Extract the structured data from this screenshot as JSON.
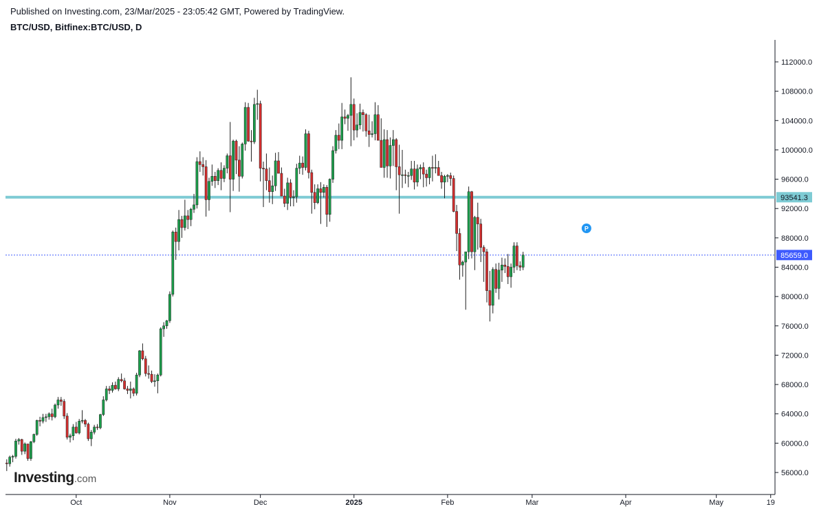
{
  "header": {
    "published": "Published on Investing.com, 23/Mar/2025 - 23:05:42 GMT, Powered by TradingView.",
    "symbol": "BTC/USD, Bitfinex:BTC/USD, D"
  },
  "logo": {
    "brand": "Investing",
    "suffix": ".com"
  },
  "colors": {
    "up": "#26a69a",
    "up_candle": "#1b9e4b",
    "down": "#d32f2f",
    "wick": "#1e1e1e",
    "support_line": "#7ecbd4",
    "last_price": "#3d5afe"
  },
  "chart_data": {
    "type": "candlestick",
    "title": "BTC/USD, Bitfinex:BTC/USD, D",
    "x_start": "2024-09-08",
    "y_axis": {
      "min": 53000,
      "max": 115000,
      "ticks": [
        "56000.0",
        "60000.0",
        "64000.0",
        "68000.0",
        "72000.0",
        "76000.0",
        "80000.0",
        "84000.0",
        "88000.0",
        "92000.0",
        "96000.0",
        "100000.0",
        "104000.0",
        "108000.0",
        "112000.0"
      ]
    },
    "x_axis": {
      "labels": [
        {
          "label": "Oct",
          "date": "2024-10-01"
        },
        {
          "label": "Nov",
          "date": "2024-11-01"
        },
        {
          "label": "Dec",
          "date": "2024-12-01"
        },
        {
          "label": "2025",
          "date": "2025-01-01",
          "bold": true
        },
        {
          "label": "Feb",
          "date": "2025-02-01"
        },
        {
          "label": "Mar",
          "date": "2025-03-01"
        },
        {
          "label": "Apr",
          "date": "2025-04-01"
        },
        {
          "label": "May",
          "date": "2025-05-01"
        },
        {
          "label": "19",
          "date": "2025-05-19"
        }
      ]
    },
    "horizontal_line": {
      "value": 93541.3,
      "label": "93541.3"
    },
    "last_price": {
      "value": 85659.0,
      "label": "85659.0"
    },
    "marker": {
      "label": "P",
      "date": "2025-03-19",
      "value": 89300
    },
    "ohlc": [
      [
        57300,
        57800,
        56200,
        57200
      ],
      [
        57200,
        58300,
        56800,
        58100
      ],
      [
        58100,
        58400,
        57400,
        58200
      ],
      [
        58200,
        60600,
        57900,
        60300
      ],
      [
        60300,
        60700,
        59800,
        60500
      ],
      [
        60500,
        60600,
        58400,
        58900
      ],
      [
        58900,
        60100,
        58500,
        59900
      ],
      [
        59900,
        59700,
        57600,
        57900
      ],
      [
        57900,
        60300,
        57600,
        60200
      ],
      [
        60200,
        61300,
        60000,
        61200
      ],
      [
        61200,
        63200,
        61000,
        63100
      ],
      [
        63100,
        63600,
        62300,
        63000
      ],
      [
        63000,
        64000,
        62700,
        63500
      ],
      [
        63500,
        64000,
        62900,
        63600
      ],
      [
        63600,
        64200,
        63200,
        64000
      ],
      [
        64000,
        64700,
        63100,
        63600
      ],
      [
        63600,
        65400,
        63400,
        65200
      ],
      [
        65200,
        66300,
        64700,
        65900
      ],
      [
        65900,
        66300,
        65100,
        65700
      ],
      [
        65700,
        66000,
        63300,
        63700
      ],
      [
        63700,
        64100,
        60500,
        60800
      ],
      [
        60800,
        61300,
        60100,
        61000
      ],
      [
        61000,
        62600,
        60400,
        62200
      ],
      [
        62200,
        62900,
        61300,
        61400
      ],
      [
        61400,
        63300,
        61200,
        63000
      ],
      [
        63000,
        64500,
        62700,
        63100
      ],
      [
        63100,
        63300,
        62200,
        62600
      ],
      [
        62600,
        62800,
        60300,
        60600
      ],
      [
        60600,
        61800,
        59600,
        61500
      ],
      [
        61500,
        62500,
        61200,
        62200
      ],
      [
        62200,
        62600,
        61800,
        62100
      ],
      [
        62100,
        64000,
        61900,
        63900
      ],
      [
        63900,
        66400,
        63700,
        65900
      ],
      [
        65900,
        67800,
        65700,
        67400
      ],
      [
        67400,
        67800,
        66700,
        67200
      ],
      [
        67200,
        68300,
        66900,
        67900
      ],
      [
        67900,
        68400,
        67300,
        67400
      ],
      [
        67400,
        69000,
        67100,
        68700
      ],
      [
        68700,
        69500,
        68300,
        68500
      ],
      [
        68500,
        68900,
        67300,
        67400
      ],
      [
        67400,
        67800,
        66700,
        67200
      ],
      [
        67200,
        68400,
        66100,
        67400
      ],
      [
        67400,
        67600,
        66400,
        66800
      ],
      [
        66800,
        69600,
        66500,
        69300
      ],
      [
        69300,
        72700,
        69000,
        72600
      ],
      [
        72600,
        73600,
        71300,
        71500
      ],
      [
        71500,
        71900,
        69100,
        69500
      ],
      [
        69500,
        70600,
        68800,
        69400
      ],
      [
        69400,
        69900,
        68200,
        68400
      ],
      [
        68400,
        69400,
        67700,
        68500
      ],
      [
        68500,
        69500,
        66800,
        69300
      ],
      [
        69300,
        75800,
        69100,
        75600
      ],
      [
        75600,
        76500,
        74500,
        76000
      ],
      [
        76000,
        76800,
        75600,
        76700
      ],
      [
        76700,
        80700,
        76400,
        80300
      ],
      [
        80300,
        89000,
        80000,
        88800
      ],
      [
        88800,
        89400,
        85000,
        87500
      ],
      [
        87500,
        91800,
        86300,
        90500
      ],
      [
        90500,
        91000,
        88000,
        89400
      ],
      [
        89400,
        93200,
        89000,
        91000
      ],
      [
        91000,
        91800,
        89200,
        90500
      ],
      [
        90500,
        92100,
        89600,
        91900
      ],
      [
        91900,
        94000,
        91400,
        92500
      ],
      [
        92500,
        99000,
        92000,
        98400
      ],
      [
        98400,
        99800,
        97000,
        98000
      ],
      [
        98000,
        99000,
        96500,
        97700
      ],
      [
        97700,
        98600,
        90900,
        93200
      ],
      [
        93200,
        96200,
        91700,
        95700
      ],
      [
        95700,
        98000,
        95100,
        96400
      ],
      [
        96400,
        97000,
        94800,
        95800
      ],
      [
        95800,
        97500,
        95200,
        97200
      ],
      [
        97200,
        98300,
        94500,
        96100
      ],
      [
        96100,
        97900,
        95600,
        97500
      ],
      [
        97500,
        99500,
        96800,
        99200
      ],
      [
        99200,
        103800,
        91500,
        96000
      ],
      [
        96000,
        101400,
        94400,
        101200
      ],
      [
        101200,
        101400,
        96700,
        98600
      ],
      [
        98600,
        100500,
        94300,
        96400
      ],
      [
        96400,
        101000,
        96100,
        100800
      ],
      [
        100800,
        106500,
        99900,
        105800
      ],
      [
        105800,
        106400,
        101100,
        101200
      ],
      [
        101200,
        102700,
        98400,
        101100
      ],
      [
        101100,
        107100,
        100800,
        106200
      ],
      [
        106200,
        108200,
        104100,
        106300
      ],
      [
        106300,
        106700,
        95700,
        97500
      ],
      [
        97500,
        98400,
        92200,
        97400
      ],
      [
        97400,
        99500,
        94500,
        95800
      ],
      [
        95800,
        97600,
        92800,
        94300
      ],
      [
        94300,
        96500,
        92600,
        95100
      ],
      [
        95100,
        99600,
        94400,
        98500
      ],
      [
        98500,
        99700,
        96900,
        96800
      ],
      [
        96800,
        97600,
        94000,
        93700
      ],
      [
        93700,
        94700,
        92200,
        92700
      ],
      [
        92700,
        96200,
        91800,
        95500
      ],
      [
        95500,
        96000,
        92300,
        93500
      ],
      [
        93500,
        94500,
        92300,
        93600
      ],
      [
        93600,
        98100,
        92800,
        97500
      ],
      [
        97500,
        99200,
        96700,
        98200
      ],
      [
        98200,
        99100,
        96600,
        97600
      ],
      [
        97600,
        102800,
        97200,
        102200
      ],
      [
        102200,
        102600,
        96100,
        96900
      ],
      [
        96900,
        97300,
        91300,
        94200
      ],
      [
        94200,
        95300,
        91900,
        92800
      ],
      [
        92800,
        95300,
        92600,
        94700
      ],
      [
        94700,
        95600,
        89900,
        94200
      ],
      [
        94200,
        95300,
        93500,
        94900
      ],
      [
        94900,
        95200,
        89500,
        91200
      ],
      [
        91200,
        96100,
        90200,
        96000
      ],
      [
        96000,
        100500,
        95500,
        99900
      ],
      [
        99900,
        102700,
        99500,
        102000
      ],
      [
        102000,
        103600,
        100100,
        101300
      ],
      [
        101300,
        106400,
        100100,
        104500
      ],
      [
        104500,
        105500,
        103500,
        104300
      ],
      [
        104300,
        104900,
        102600,
        104700
      ],
      [
        104700,
        109900,
        100500,
        106200
      ],
      [
        106200,
        107000,
        101300,
        102700
      ],
      [
        102700,
        105000,
        101700,
        103400
      ],
      [
        103400,
        106300,
        102800,
        105100
      ],
      [
        105100,
        105500,
        102500,
        104800
      ],
      [
        104800,
        105000,
        101800,
        102600
      ],
      [
        102600,
        104800,
        100400,
        102100
      ],
      [
        102100,
        103900,
        101700,
        102200
      ],
      [
        102200,
        106500,
        101300,
        104800
      ],
      [
        104800,
        106100,
        101400,
        101300
      ],
      [
        101300,
        104300,
        97800,
        97600
      ],
      [
        97600,
        102800,
        96200,
        101400
      ],
      [
        101400,
        102700,
        96200,
        97800
      ],
      [
        97800,
        101700,
        96100,
        100600
      ],
      [
        100600,
        102700,
        97800,
        101400
      ],
      [
        101400,
        101600,
        94500,
        97700
      ],
      [
        97700,
        100700,
        91300,
        96600
      ],
      [
        96600,
        100000,
        94800,
        96600
      ],
      [
        96600,
        97300,
        95400,
        96500
      ],
      [
        96500,
        97000,
        94900,
        96500
      ],
      [
        96500,
        98500,
        95900,
        97400
      ],
      [
        97400,
        98500,
        94600,
        95600
      ],
      [
        95600,
        98000,
        95000,
        97400
      ],
      [
        97400,
        98000,
        96000,
        97600
      ],
      [
        97600,
        98300,
        94900,
        96700
      ],
      [
        96700,
        97300,
        95000,
        96200
      ],
      [
        96200,
        97700,
        95300,
        97600
      ],
      [
        97600,
        99200,
        95700,
        97500
      ],
      [
        97500,
        99400,
        96800,
        97600
      ],
      [
        97600,
        98500,
        96700,
        96500
      ],
      [
        96500,
        97000,
        94700,
        95600
      ],
      [
        95600,
        96600,
        93400,
        96400
      ],
      [
        96400,
        96700,
        95600,
        96500
      ],
      [
        96500,
        96900,
        95100,
        96100
      ],
      [
        96100,
        96500,
        91500,
        91600
      ],
      [
        91600,
        92500,
        86200,
        88600
      ],
      [
        88600,
        89300,
        82300,
        84300
      ],
      [
        84300,
        84900,
        82700,
        84700
      ],
      [
        84700,
        86000,
        78200,
        86100
      ],
      [
        86100,
        95000,
        85100,
        94300
      ],
      [
        94300,
        94400,
        85200,
        86100
      ],
      [
        86100,
        91000,
        83600,
        90800
      ],
      [
        90800,
        92800,
        86400,
        89900
      ],
      [
        89900,
        90600,
        84700,
        86700
      ],
      [
        86700,
        87000,
        82000,
        86100
      ],
      [
        86100,
        86500,
        79200,
        80800
      ],
      [
        80800,
        83500,
        76600,
        78800
      ],
      [
        78800,
        84000,
        77700,
        83700
      ],
      [
        83700,
        84500,
        80500,
        81100
      ],
      [
        81100,
        84600,
        79600,
        83600
      ],
      [
        83600,
        85300,
        82000,
        84300
      ],
      [
        84300,
        85200,
        83200,
        84100
      ],
      [
        84100,
        85800,
        81700,
        82700
      ],
      [
        82700,
        84500,
        81200,
        84000
      ],
      [
        84000,
        87400,
        83200,
        86900
      ],
      [
        86900,
        87400,
        83600,
        84200
      ],
      [
        84200,
        84800,
        83500,
        84000
      ],
      [
        84000,
        86100,
        83600,
        85659
      ]
    ]
  }
}
